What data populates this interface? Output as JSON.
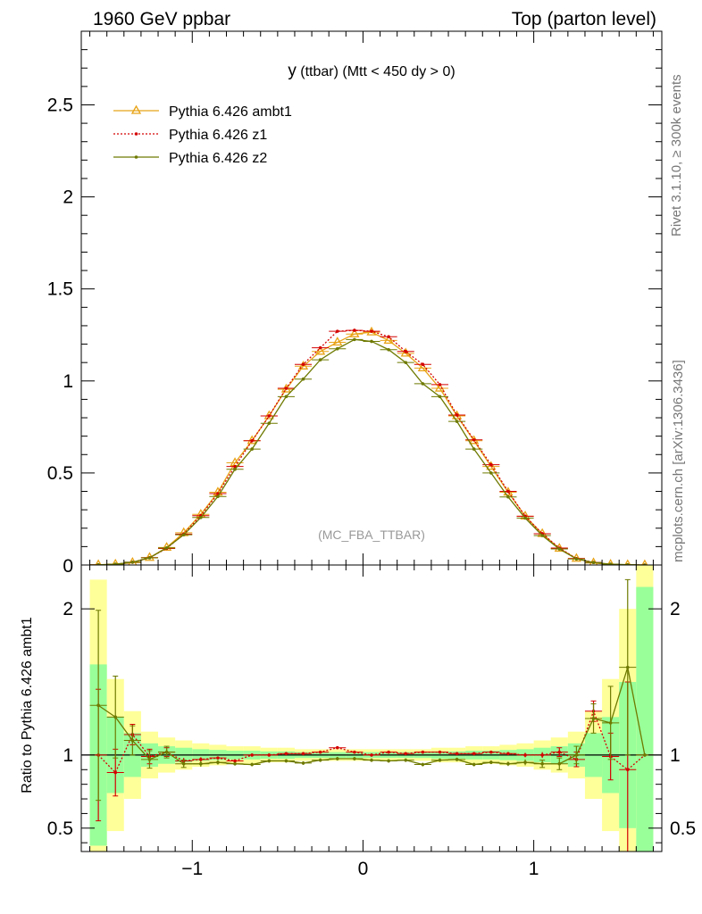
{
  "header": {
    "left": "1960 GeV ppbar",
    "right": "Top (parton level)"
  },
  "side": {
    "rivet": "Rivet 3.1.10, ≥ 300k events",
    "mcplots": "mcplots.cern.ch [arXiv:1306.3436]"
  },
  "colors": {
    "ambt1": "#e8a317",
    "z1": "#d40000",
    "z2": "#6e7a00",
    "band_green": "#99ff99",
    "band_yellow": "#ffff99"
  },
  "chart_data": [
    {
      "type": "line",
      "title_main": "y",
      "title_rest": " (ttbar) (Mtt < 450 dy > 0)",
      "watermark": "(MC_FBA_TTBAR)",
      "xlim": [
        -1.65,
        1.75
      ],
      "ylim": [
        0,
        2.9
      ],
      "yticks": [
        0.5,
        1,
        1.5,
        2,
        2.5
      ],
      "ytick_labels": [
        "0.5",
        "1",
        "1.5",
        "2",
        "2.5"
      ],
      "y0_label": "0",
      "x": [
        -1.55,
        -1.45,
        -1.35,
        -1.25,
        -1.15,
        -1.05,
        -0.95,
        -0.85,
        -0.75,
        -0.65,
        -0.55,
        -0.45,
        -0.35,
        -0.25,
        -0.15,
        -0.05,
        0.05,
        0.15,
        0.25,
        0.35,
        0.45,
        0.55,
        0.65,
        0.75,
        0.85,
        0.95,
        1.05,
        1.15,
        1.25,
        1.35,
        1.45,
        1.55,
        1.65
      ],
      "series": [
        {
          "name": "Pythia 6.426 ambt1",
          "key": "ambt1",
          "values": [
            0.001,
            0.004,
            0.013,
            0.04,
            0.095,
            0.175,
            0.275,
            0.395,
            0.555,
            0.675,
            0.81,
            0.955,
            1.08,
            1.16,
            1.21,
            1.255,
            1.265,
            1.22,
            1.15,
            1.07,
            0.96,
            0.81,
            0.675,
            0.535,
            0.395,
            0.265,
            0.17,
            0.09,
            0.035,
            0.011,
            0.003,
            0.001,
            0.0
          ]
        },
        {
          "name": "Pythia 6.426 z1",
          "key": "z1",
          "values": [
            0.001,
            0.0035,
            0.015,
            0.04,
            0.09,
            0.168,
            0.268,
            0.388,
            0.535,
            0.675,
            0.81,
            0.96,
            1.09,
            1.18,
            1.27,
            1.275,
            1.27,
            1.24,
            1.16,
            1.09,
            0.98,
            0.815,
            0.68,
            0.545,
            0.4,
            0.265,
            0.17,
            0.092,
            0.035,
            0.014,
            0.003,
            0.0005,
            0.0
          ]
        },
        {
          "name": "Pythia 6.426 z2",
          "key": "z2",
          "values": [
            0.0013,
            0.0045,
            0.015,
            0.039,
            0.093,
            0.164,
            0.258,
            0.372,
            0.52,
            0.63,
            0.77,
            0.915,
            1.01,
            1.115,
            1.175,
            1.225,
            1.215,
            1.17,
            1.1,
            0.985,
            0.915,
            0.78,
            0.63,
            0.5,
            0.37,
            0.255,
            0.16,
            0.087,
            0.033,
            0.0135,
            0.0045,
            0.0016,
            0.0
          ]
        }
      ]
    },
    {
      "type": "line",
      "ylabel": "Ratio to Pythia 6.426 ambt1",
      "xlim": [
        -1.65,
        1.75
      ],
      "ylim": [
        0.34,
        2.3
      ],
      "yticks": [
        0.5,
        1,
        2
      ],
      "ytick_labels": [
        "0.5",
        "1",
        "2"
      ],
      "xticks": [
        -1,
        0,
        1
      ],
      "xtick_labels": [
        "−1",
        "0",
        "1"
      ],
      "x": [
        -1.55,
        -1.45,
        -1.35,
        -1.25,
        -1.15,
        -1.05,
        -0.95,
        -0.85,
        -0.75,
        -0.65,
        -0.55,
        -0.45,
        -0.35,
        -0.25,
        -0.15,
        -0.05,
        0.05,
        0.15,
        0.25,
        0.35,
        0.45,
        0.55,
        0.65,
        0.75,
        0.85,
        0.95,
        1.05,
        1.15,
        1.25,
        1.35,
        1.45,
        1.55,
        1.65
      ],
      "band_green": [
        0.62,
        0.26,
        0.15,
        0.08,
        0.06,
        0.05,
        0.04,
        0.035,
        0.03,
        0.03,
        0.025,
        0.025,
        0.02,
        0.02,
        0.02,
        0.02,
        0.02,
        0.02,
        0.02,
        0.02,
        0.025,
        0.025,
        0.03,
        0.03,
        0.035,
        0.04,
        0.05,
        0.06,
        0.08,
        0.15,
        0.26,
        0.5,
        1.15
      ],
      "band_yellow": [
        1.2,
        0.52,
        0.3,
        0.16,
        0.12,
        0.1,
        0.08,
        0.07,
        0.06,
        0.06,
        0.05,
        0.05,
        0.04,
        0.04,
        0.04,
        0.04,
        0.04,
        0.04,
        0.04,
        0.04,
        0.05,
        0.05,
        0.06,
        0.06,
        0.07,
        0.08,
        0.1,
        0.12,
        0.16,
        0.3,
        0.52,
        1.0,
        1.4
      ],
      "series": [
        {
          "name": "Pythia 6.426 z1",
          "key": "z1",
          "values": [
            1.0,
            0.88,
            1.14,
            0.99,
            1.02,
            0.96,
            0.97,
            0.98,
            0.96,
            1.0,
            1.0,
            1.01,
            1.01,
            1.02,
            1.05,
            1.02,
            1.0,
            1.02,
            1.01,
            1.02,
            1.02,
            1.01,
            1.01,
            1.02,
            1.01,
            1.0,
            1.0,
            1.02,
            0.97,
            1.3,
            0.99,
            0.9,
            1.0
          ],
          "err": [
            0.45,
            0.16,
            0.07,
            0.05,
            0.03,
            0.02,
            0.015,
            0.01,
            0.01,
            0.01,
            0.01,
            0.01,
            0.01,
            0.01,
            0.01,
            0.01,
            0.01,
            0.01,
            0.01,
            0.01,
            0.01,
            0.01,
            0.01,
            0.01,
            0.01,
            0.015,
            0.02,
            0.03,
            0.05,
            0.07,
            0.16,
            0.6,
            0.0
          ]
        },
        {
          "name": "Pythia 6.426 z2",
          "key": "z2",
          "values": [
            1.34,
            1.26,
            1.1,
            0.97,
            1.02,
            0.94,
            0.94,
            0.95,
            0.94,
            0.935,
            0.96,
            0.96,
            0.945,
            0.965,
            0.975,
            0.975,
            0.965,
            0.96,
            0.965,
            0.935,
            0.965,
            0.97,
            0.935,
            0.95,
            0.94,
            0.95,
            0.94,
            0.94,
            1.0,
            1.25,
            1.22,
            1.6,
            1.0
          ],
          "err": [
            0.65,
            0.28,
            0.1,
            0.06,
            0.04,
            0.025,
            0.02,
            0.015,
            0.012,
            0.012,
            0.012,
            0.012,
            0.012,
            0.012,
            0.012,
            0.012,
            0.012,
            0.012,
            0.012,
            0.012,
            0.012,
            0.012,
            0.012,
            0.012,
            0.015,
            0.02,
            0.025,
            0.04,
            0.06,
            0.1,
            0.25,
            0.6,
            0.0
          ]
        }
      ]
    }
  ]
}
